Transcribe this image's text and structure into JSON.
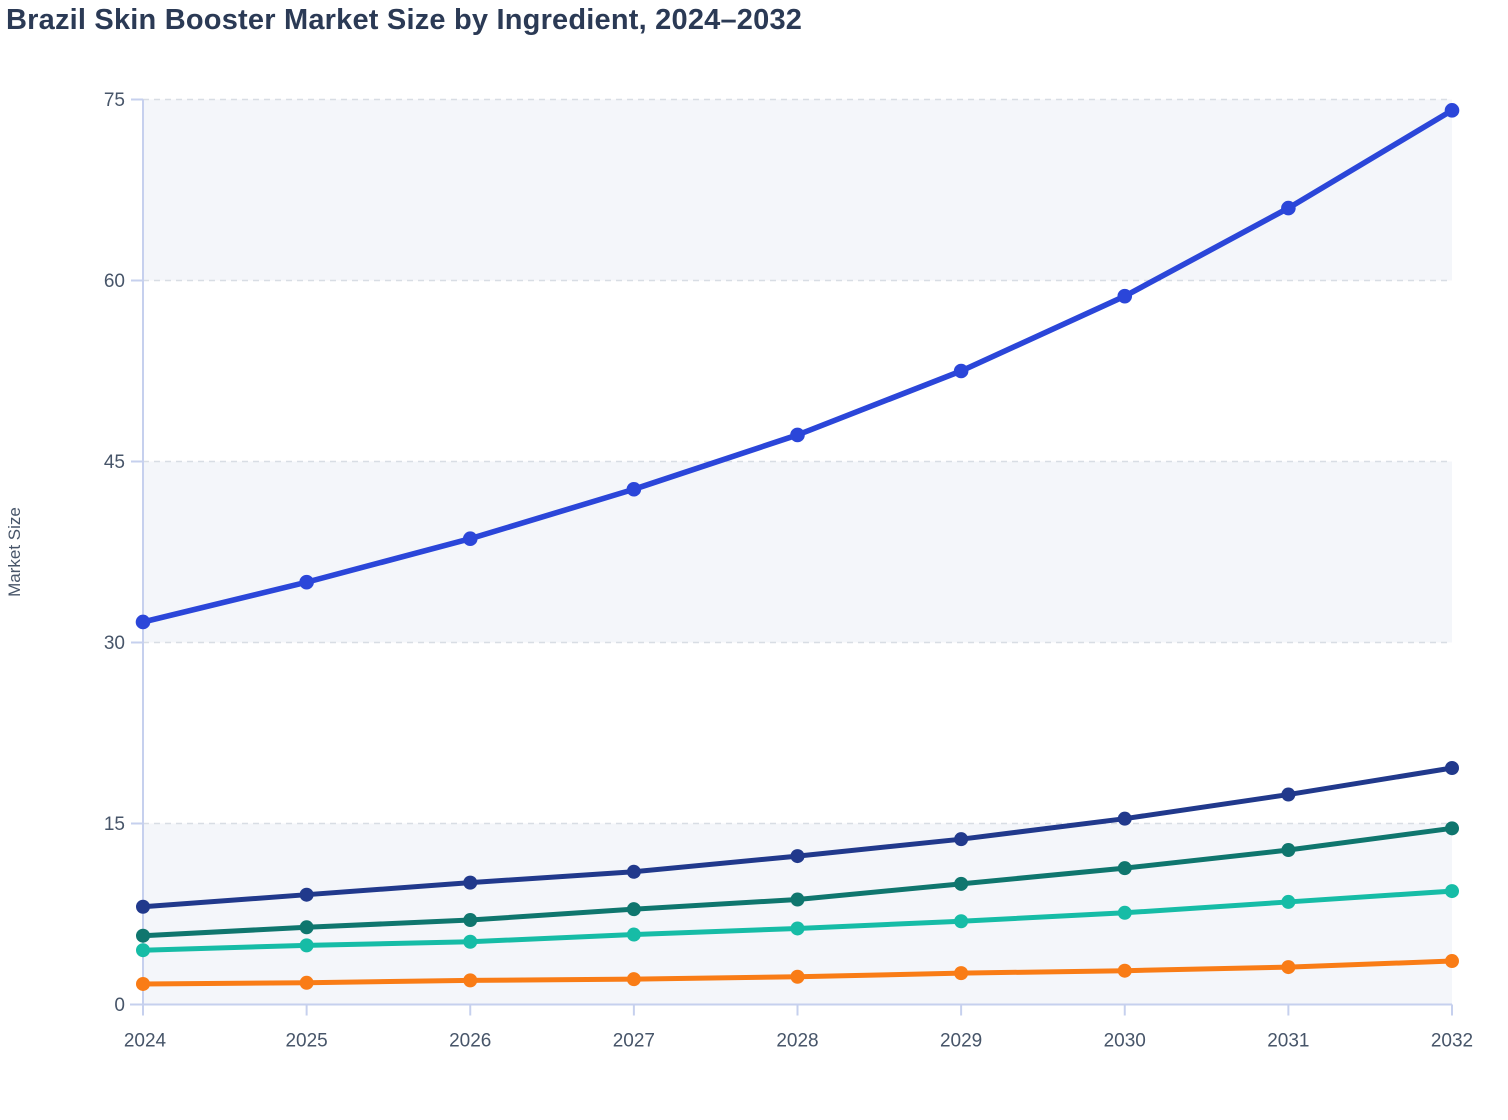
{
  "page": {
    "title": "Brazil Skin Booster Market Size by Ingredient, 2024–2032"
  },
  "chart_data": {
    "type": "line",
    "title": "Brazil Skin Booster Market Size by Ingredient, 2024–2032",
    "xlabel": "",
    "ylabel": "Market Size",
    "x": [
      "2024",
      "2025",
      "2026",
      "2027",
      "2028",
      "2029",
      "2030",
      "2031",
      "2032"
    ],
    "y_ticks": [
      0,
      15,
      30,
      45,
      60,
      75
    ],
    "ylim": [
      0,
      75
    ],
    "legend_position": "none",
    "grid": "horizontal-dashed",
    "shaded_bands": [
      [
        0,
        15
      ],
      [
        30,
        45
      ],
      [
        60,
        75
      ]
    ],
    "series": [
      {
        "name": "series-1-royal-blue",
        "color": "#2b46d9",
        "marker": "circle",
        "values": [
          31.7,
          35.0,
          38.6,
          42.7,
          47.2,
          52.5,
          58.7,
          66.0,
          74.1
        ]
      },
      {
        "name": "series-2-navy",
        "color": "#21398c",
        "marker": "circle",
        "values": [
          8.1,
          9.1,
          10.1,
          11.0,
          12.3,
          13.7,
          15.4,
          17.4,
          19.6
        ]
      },
      {
        "name": "series-3-dark-teal",
        "color": "#0f766e",
        "marker": "circle",
        "values": [
          5.7,
          6.4,
          7.0,
          7.9,
          8.7,
          10.0,
          11.3,
          12.8,
          14.6
        ]
      },
      {
        "name": "series-4-turquoise",
        "color": "#16bca6",
        "marker": "circle",
        "values": [
          4.5,
          4.9,
          5.2,
          5.8,
          6.3,
          6.9,
          7.6,
          8.5,
          9.4
        ]
      },
      {
        "name": "series-5-orange",
        "color": "#f97c16",
        "marker": "circle",
        "values": [
          1.7,
          1.8,
          2.0,
          2.1,
          2.3,
          2.6,
          2.8,
          3.1,
          3.6
        ]
      }
    ]
  },
  "theme": {
    "band_fill": "#f4f6fa",
    "gridline_color": "#d8dde4",
    "axis_color": "#c6d0ee",
    "tick_label_color": "#475569",
    "axis_title_color": "#475569",
    "title_color": "#2b3a55"
  }
}
